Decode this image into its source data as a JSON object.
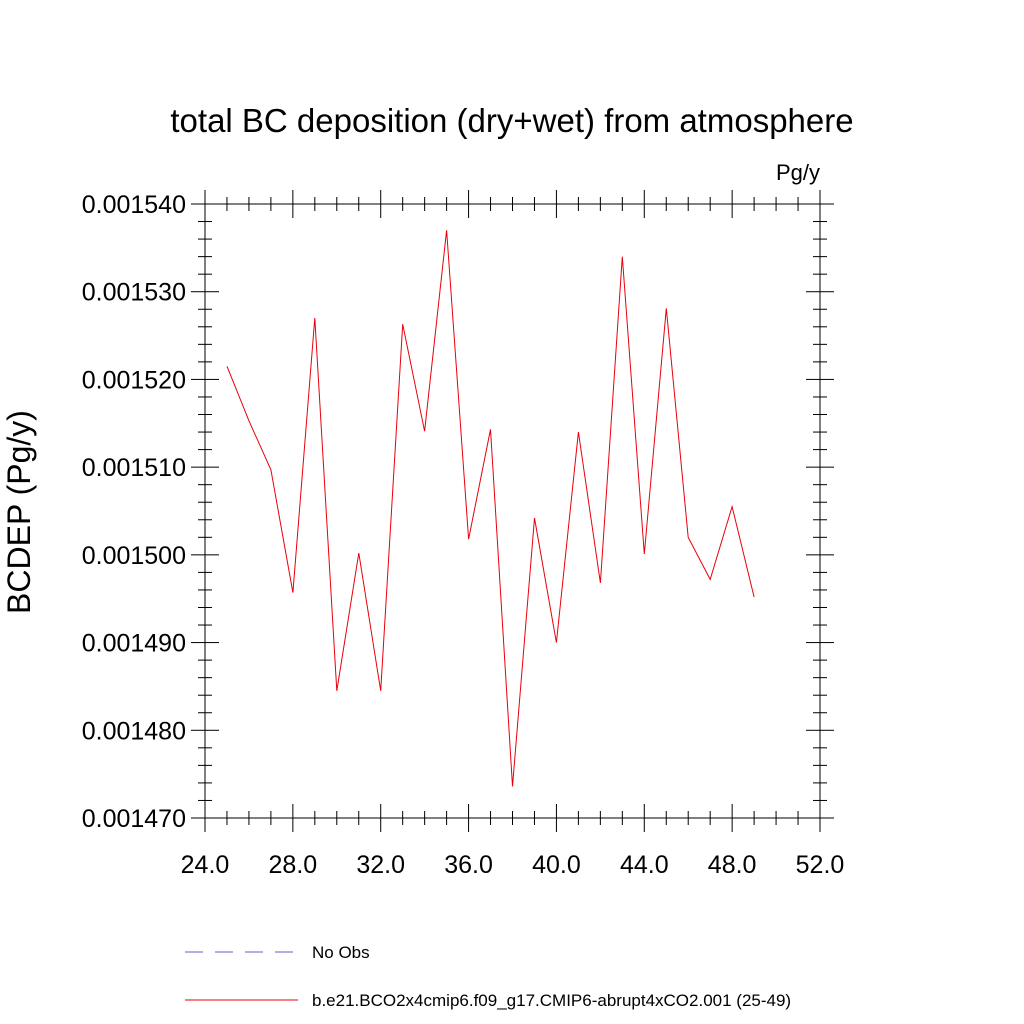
{
  "chart_data": {
    "type": "line",
    "title": "total BC deposition (dry+wet) from atmosphere",
    "units": "Pg/y",
    "ylabel": "BCDEP  (Pg/y)",
    "xlabel": "",
    "xlim": [
      24.0,
      52.0
    ],
    "ylim": [
      0.00147,
      0.00154
    ],
    "x_ticks": [
      "24.0",
      "28.0",
      "32.0",
      "36.0",
      "40.0",
      "44.0",
      "48.0",
      "52.0"
    ],
    "x_tick_values": [
      24,
      28,
      32,
      36,
      40,
      44,
      48,
      52
    ],
    "y_ticks": [
      "0.001470",
      "0.001480",
      "0.001490",
      "0.001500",
      "0.001510",
      "0.001520",
      "0.001530",
      "0.001540"
    ],
    "y_tick_values": [
      0.00147,
      0.00148,
      0.00149,
      0.0015,
      0.00151,
      0.00152,
      0.00153,
      0.00154
    ],
    "grid": false,
    "legend_position": "bottom",
    "series": [
      {
        "name": "b.e21.BCO2x4cmip6.f09_g17.CMIP6-abrupt4xCO2.001 (25-49)",
        "color": "#e8000b",
        "style": "solid",
        "x": [
          25,
          26,
          27,
          28,
          29,
          30,
          31,
          32,
          33,
          34,
          35,
          36,
          37,
          38,
          39,
          40,
          41,
          42,
          43,
          44,
          45,
          46,
          47,
          48,
          49
        ],
        "y": [
          0.0015215,
          0.0015153,
          0.0015097,
          0.0014957,
          0.001527,
          0.0014845,
          0.0015002,
          0.0014845,
          0.0015263,
          0.0015141,
          0.001537,
          0.0015018,
          0.0015143,
          0.0014736,
          0.0015042,
          0.00149,
          0.001514,
          0.0014968,
          0.001534,
          0.0015001,
          0.0015281,
          0.001502,
          0.0014972,
          0.0015055,
          0.0014952
        ]
      },
      {
        "name": "No Obs",
        "color": "#6a5acd",
        "style": "dashed",
        "x": [],
        "y": []
      }
    ]
  }
}
